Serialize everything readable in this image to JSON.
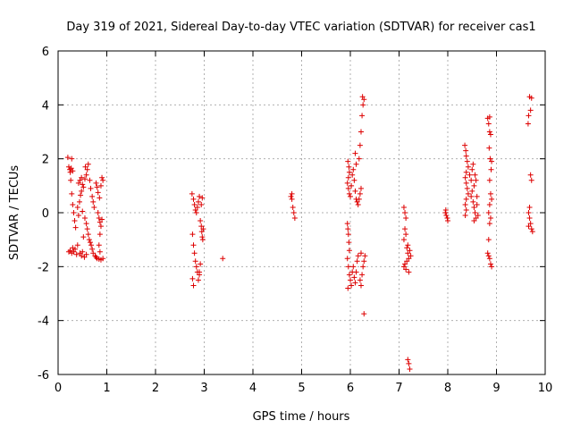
{
  "chart_data": {
    "type": "scatter",
    "title": "Day 319 of 2021, Sidereal Day-to-day VTEC variation (SDTVAR) for receiver cas1",
    "xlabel": "GPS time / hours",
    "ylabel": "SDTVAR / TECUs",
    "xlim": [
      0,
      10
    ],
    "ylim": [
      -6,
      6
    ],
    "xticks": [
      0,
      1,
      2,
      3,
      4,
      5,
      6,
      7,
      8,
      9,
      10
    ],
    "yticks": [
      -6,
      -4,
      -2,
      0,
      2,
      4,
      6
    ],
    "grid": true,
    "legend": "none",
    "marker": "+",
    "colors": {
      "series": "#dd0000",
      "grid": "#b0b0b0",
      "axis": "#000000"
    },
    "series": [
      {
        "name": "cas1",
        "points": [
          [
            0.2,
            2.05
          ],
          [
            0.22,
            1.7
          ],
          [
            0.24,
            1.6
          ],
          [
            0.25,
            1.5
          ],
          [
            0.27,
            1.65
          ],
          [
            0.28,
            2.0
          ],
          [
            0.3,
            1.55
          ],
          [
            0.26,
            1.2
          ],
          [
            0.28,
            0.7
          ],
          [
            0.3,
            0.3
          ],
          [
            0.32,
            0.0
          ],
          [
            0.34,
            -0.3
          ],
          [
            0.36,
            -0.55
          ],
          [
            0.3,
            -1.3
          ],
          [
            0.32,
            -1.45
          ],
          [
            0.28,
            -1.5
          ],
          [
            0.25,
            -1.4
          ],
          [
            0.35,
            -1.35
          ],
          [
            0.38,
            -1.55
          ],
          [
            0.4,
            -1.2
          ],
          [
            0.22,
            -1.45
          ],
          [
            0.45,
            -1.5
          ],
          [
            0.48,
            -1.6
          ],
          [
            0.5,
            -1.45
          ],
          [
            0.42,
            1.1
          ],
          [
            0.45,
            1.2
          ],
          [
            0.48,
            1.3
          ],
          [
            0.5,
            1.05
          ],
          [
            0.52,
            0.95
          ],
          [
            0.55,
            1.25
          ],
          [
            0.58,
            1.4
          ],
          [
            0.6,
            1.6
          ],
          [
            0.62,
            1.8
          ],
          [
            0.56,
            1.7
          ],
          [
            0.4,
            0.2
          ],
          [
            0.42,
            -0.1
          ],
          [
            0.44,
            0.4
          ],
          [
            0.46,
            0.65
          ],
          [
            0.48,
            0.8
          ],
          [
            0.65,
            1.2
          ],
          [
            0.67,
            0.9
          ],
          [
            0.7,
            0.6
          ],
          [
            0.72,
            0.4
          ],
          [
            0.74,
            0.2
          ],
          [
            0.62,
            -0.8
          ],
          [
            0.64,
            -1.0
          ],
          [
            0.66,
            -1.1
          ],
          [
            0.68,
            -1.2
          ],
          [
            0.7,
            -1.35
          ],
          [
            0.72,
            -1.5
          ],
          [
            0.76,
            -1.6
          ],
          [
            0.78,
            -1.65
          ],
          [
            0.8,
            -1.7
          ],
          [
            0.84,
            -1.72
          ],
          [
            0.88,
            -1.75
          ],
          [
            0.92,
            -1.7
          ],
          [
            0.6,
            -0.6
          ],
          [
            0.58,
            -0.4
          ],
          [
            0.55,
            -0.2
          ],
          [
            0.78,
            1.1
          ],
          [
            0.8,
            0.95
          ],
          [
            0.82,
            0.75
          ],
          [
            0.85,
            0.55
          ],
          [
            0.88,
            1.0
          ],
          [
            0.9,
            1.3
          ],
          [
            0.92,
            1.2
          ],
          [
            0.82,
            0.0
          ],
          [
            0.84,
            -0.2
          ],
          [
            0.86,
            -0.35
          ],
          [
            0.88,
            -0.5
          ],
          [
            0.9,
            -0.25
          ],
          [
            0.86,
            -0.8
          ],
          [
            0.84,
            -1.2
          ],
          [
            0.86,
            -1.45
          ],
          [
            0.54,
            -1.65
          ],
          [
            0.58,
            -1.55
          ],
          [
            0.52,
            -0.9
          ],
          [
            0.5,
            0.05
          ],
          [
            2.75,
            0.7
          ],
          [
            2.78,
            0.5
          ],
          [
            2.8,
            0.3
          ],
          [
            2.82,
            0.1
          ],
          [
            2.84,
            0.0
          ],
          [
            2.86,
            0.2
          ],
          [
            2.88,
            0.4
          ],
          [
            2.9,
            0.6
          ],
          [
            2.76,
            -0.8
          ],
          [
            2.78,
            -1.2
          ],
          [
            2.8,
            -1.5
          ],
          [
            2.82,
            -1.8
          ],
          [
            2.84,
            -2.0
          ],
          [
            2.86,
            -2.2
          ],
          [
            2.76,
            -2.45
          ],
          [
            2.78,
            -2.7
          ],
          [
            2.88,
            -2.5
          ],
          [
            2.9,
            -2.2
          ],
          [
            2.92,
            -0.3
          ],
          [
            2.94,
            -0.5
          ],
          [
            2.95,
            -0.7
          ],
          [
            2.96,
            -0.9
          ],
          [
            2.97,
            -1.0
          ],
          [
            2.98,
            -0.6
          ],
          [
            2.94,
            0.3
          ],
          [
            2.96,
            0.55
          ],
          [
            2.92,
            -1.9
          ],
          [
            2.9,
            -2.3
          ],
          [
            3.38,
            -1.7
          ],
          [
            4.78,
            0.6
          ],
          [
            4.8,
            0.5
          ],
          [
            4.82,
            0.2
          ],
          [
            4.84,
            0.0
          ],
          [
            4.86,
            -0.2
          ],
          [
            4.8,
            0.7
          ],
          [
            5.95,
            1.9
          ],
          [
            5.97,
            1.7
          ],
          [
            5.98,
            1.5
          ],
          [
            5.96,
            1.3
          ],
          [
            5.94,
            1.1
          ],
          [
            5.96,
            0.9
          ],
          [
            5.98,
            0.7
          ],
          [
            6.0,
            0.6
          ],
          [
            6.02,
            1.0
          ],
          [
            6.04,
            1.4
          ],
          [
            6.06,
            1.6
          ],
          [
            6.08,
            1.2
          ],
          [
            6.1,
            0.8
          ],
          [
            6.12,
            0.5
          ],
          [
            6.14,
            0.4
          ],
          [
            6.16,
            0.3
          ],
          [
            6.18,
            0.5
          ],
          [
            6.2,
            0.7
          ],
          [
            6.22,
            0.9
          ],
          [
            6.18,
            2.0
          ],
          [
            6.2,
            2.5
          ],
          [
            6.22,
            3.0
          ],
          [
            6.24,
            3.6
          ],
          [
            6.26,
            4.0
          ],
          [
            6.28,
            4.2
          ],
          [
            6.25,
            4.3
          ],
          [
            5.94,
            -0.4
          ],
          [
            5.95,
            -0.6
          ],
          [
            5.96,
            -0.8
          ],
          [
            5.97,
            -1.1
          ],
          [
            5.98,
            -1.4
          ],
          [
            5.94,
            -1.7
          ],
          [
            5.96,
            -2.0
          ],
          [
            5.98,
            -2.3
          ],
          [
            6.0,
            -2.5
          ],
          [
            6.02,
            -2.7
          ],
          [
            5.95,
            -2.8
          ],
          [
            6.04,
            -2.2
          ],
          [
            6.06,
            -2.0
          ],
          [
            6.08,
            -2.4
          ],
          [
            6.1,
            -2.6
          ],
          [
            6.12,
            -2.2
          ],
          [
            6.14,
            -1.8
          ],
          [
            6.16,
            -1.6
          ],
          [
            6.2,
            -2.5
          ],
          [
            6.22,
            -2.7
          ],
          [
            6.24,
            -2.3
          ],
          [
            6.26,
            -2.0
          ],
          [
            6.28,
            -1.8
          ],
          [
            6.3,
            -1.6
          ],
          [
            6.22,
            -1.5
          ],
          [
            6.28,
            -3.75
          ],
          [
            6.12,
            1.8
          ],
          [
            6.1,
            2.2
          ],
          [
            7.1,
            0.2
          ],
          [
            7.12,
            0.0
          ],
          [
            7.14,
            -0.2
          ],
          [
            7.12,
            -0.6
          ],
          [
            7.14,
            -0.8
          ],
          [
            7.1,
            -1.0
          ],
          [
            7.16,
            -1.3
          ],
          [
            7.18,
            -1.5
          ],
          [
            7.2,
            -1.7
          ],
          [
            7.12,
            -1.9
          ],
          [
            7.14,
            -2.1
          ],
          [
            7.16,
            -1.8
          ],
          [
            7.22,
            -1.4
          ],
          [
            7.24,
            -1.6
          ],
          [
            7.1,
            -2.0
          ],
          [
            7.18,
            -5.45
          ],
          [
            7.2,
            -5.6
          ],
          [
            7.22,
            -5.8
          ],
          [
            7.18,
            -1.2
          ],
          [
            7.2,
            -2.2
          ],
          [
            7.95,
            0.0
          ],
          [
            7.97,
            -0.1
          ],
          [
            7.99,
            -0.2
          ],
          [
            8.0,
            -0.3
          ],
          [
            7.96,
            0.1
          ],
          [
            8.35,
            2.5
          ],
          [
            8.37,
            2.3
          ],
          [
            8.38,
            2.1
          ],
          [
            8.4,
            1.9
          ],
          [
            8.42,
            1.7
          ],
          [
            8.38,
            1.5
          ],
          [
            8.36,
            1.3
          ],
          [
            8.38,
            1.1
          ],
          [
            8.4,
            0.9
          ],
          [
            8.42,
            0.7
          ],
          [
            8.38,
            0.5
          ],
          [
            8.36,
            0.3
          ],
          [
            8.38,
            0.1
          ],
          [
            8.36,
            -0.1
          ],
          [
            8.45,
            1.4
          ],
          [
            8.48,
            1.2
          ],
          [
            8.5,
            1.6
          ],
          [
            8.52,
            1.8
          ],
          [
            8.54,
            1.0
          ],
          [
            8.5,
            0.8
          ],
          [
            8.48,
            0.6
          ],
          [
            8.52,
            0.4
          ],
          [
            8.54,
            0.2
          ],
          [
            8.56,
            0.0
          ],
          [
            8.58,
            -0.2
          ],
          [
            8.6,
            0.3
          ],
          [
            8.56,
            1.4
          ],
          [
            8.58,
            1.2
          ],
          [
            8.6,
            0.6
          ],
          [
            8.62,
            -0.1
          ],
          [
            8.54,
            -0.3
          ],
          [
            8.82,
            3.5
          ],
          [
            8.84,
            3.3
          ],
          [
            8.86,
            3.0
          ],
          [
            8.88,
            2.9
          ],
          [
            8.85,
            2.4
          ],
          [
            8.87,
            2.0
          ],
          [
            8.89,
            1.6
          ],
          [
            8.86,
            1.2
          ],
          [
            8.88,
            0.7
          ],
          [
            8.9,
            0.5
          ],
          [
            8.86,
            0.3
          ],
          [
            8.84,
            0.0
          ],
          [
            8.88,
            -0.2
          ],
          [
            8.86,
            -0.4
          ],
          [
            8.84,
            -1.0
          ],
          [
            8.82,
            -1.5
          ],
          [
            8.86,
            -1.7
          ],
          [
            8.88,
            -1.9
          ],
          [
            8.9,
            -2.0
          ],
          [
            8.84,
            -1.6
          ],
          [
            8.9,
            1.9
          ],
          [
            8.86,
            3.55
          ],
          [
            9.68,
            4.3
          ],
          [
            9.72,
            4.25
          ],
          [
            9.7,
            3.8
          ],
          [
            9.66,
            3.6
          ],
          [
            9.65,
            3.3
          ],
          [
            9.7,
            1.4
          ],
          [
            9.72,
            1.2
          ],
          [
            9.68,
            0.2
          ],
          [
            9.66,
            0.0
          ],
          [
            9.68,
            -0.2
          ],
          [
            9.7,
            -0.4
          ],
          [
            9.72,
            -0.6
          ],
          [
            9.74,
            -0.7
          ],
          [
            9.66,
            -0.5
          ]
        ]
      }
    ]
  }
}
